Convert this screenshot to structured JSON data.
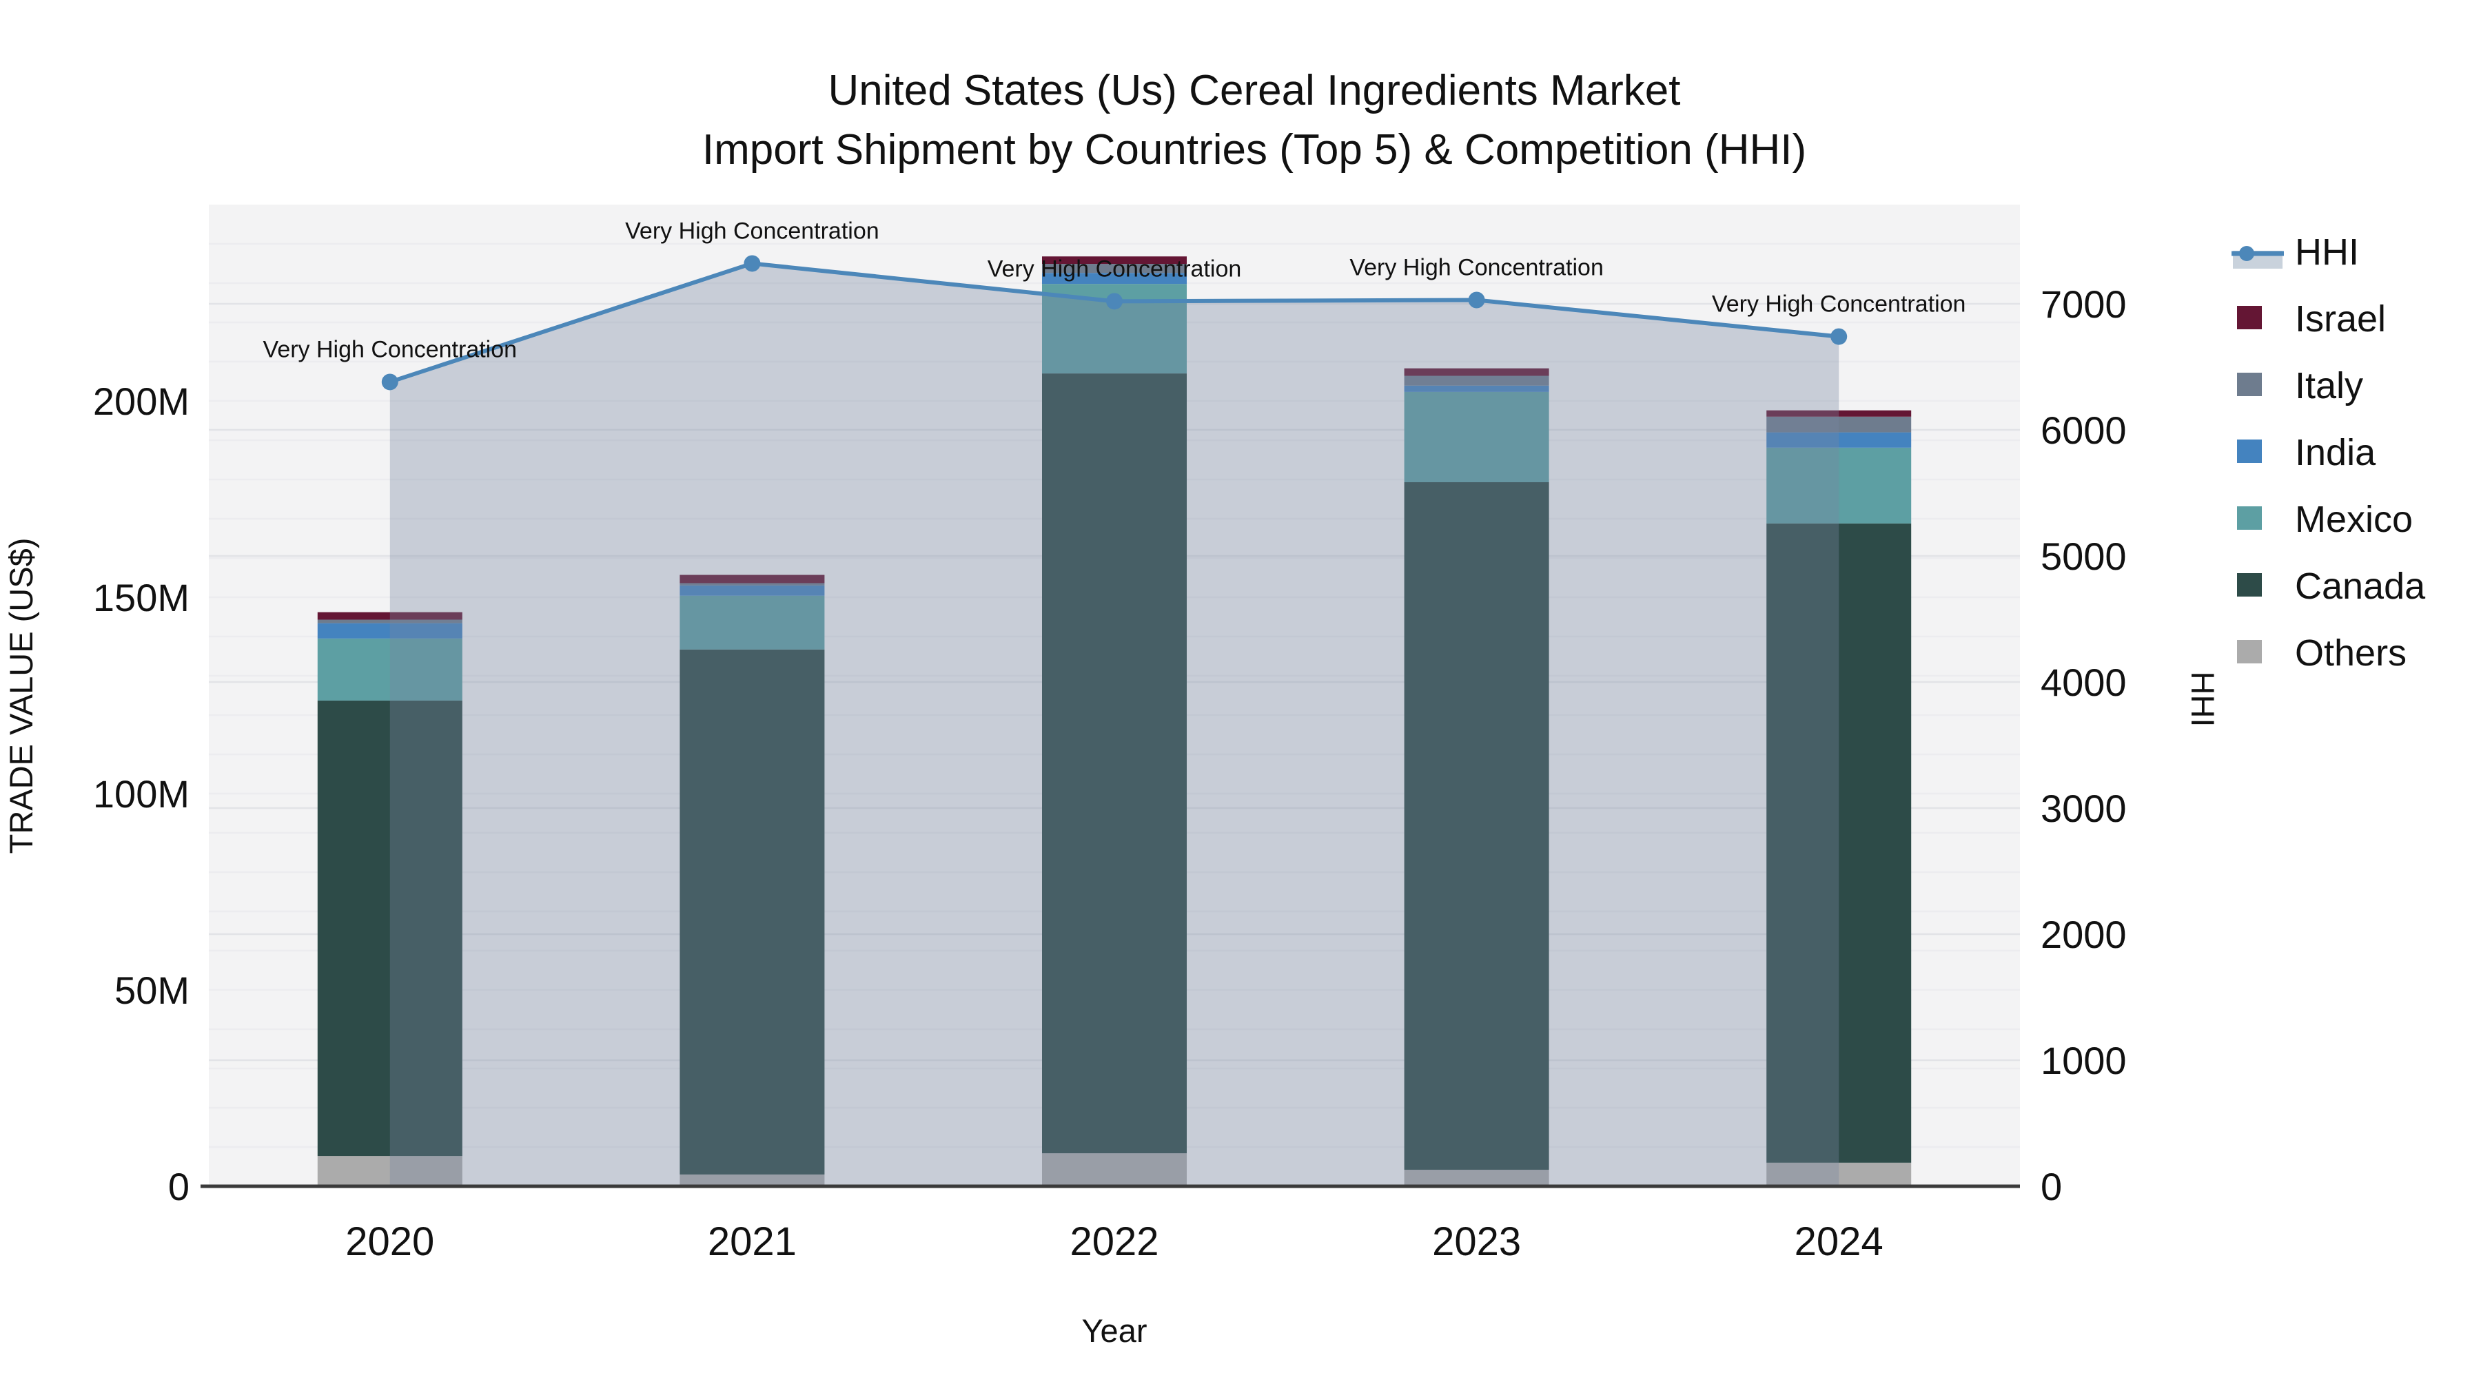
{
  "title": {
    "line1": "United States (Us) Cereal Ingredients Market",
    "line2": "Import Shipment by Countries (Top 5) & Competition (HHI)"
  },
  "axes": {
    "y_left": {
      "title": "TRADE VALUE (US$)",
      "ticks": [
        "0",
        "50M",
        "100M",
        "150M",
        "200M"
      ],
      "tick_step_millions": 50,
      "max_millions": 250
    },
    "y_right": {
      "title": "HHI",
      "ticks": [
        "0",
        "1000",
        "2000",
        "3000",
        "4000",
        "5000",
        "6000",
        "7000"
      ],
      "tick_step": 1000,
      "max": 7790
    },
    "x": {
      "title": "Year",
      "ticks": [
        "2020",
        "2021",
        "2022",
        "2023",
        "2024"
      ]
    }
  },
  "legend": {
    "items": [
      {
        "label": "HHI",
        "type": "line",
        "color": "#4C87B9",
        "band_color": "#C9D2DC"
      },
      {
        "label": "Israel",
        "type": "swatch",
        "color": "#641634"
      },
      {
        "label": "Italy",
        "type": "swatch",
        "color": "#6E7C8E"
      },
      {
        "label": "India",
        "type": "swatch",
        "color": "#4483BF"
      },
      {
        "label": "Mexico",
        "type": "swatch",
        "color": "#5D9FA3"
      },
      {
        "label": "Canada",
        "type": "swatch",
        "color": "#2D4B48"
      },
      {
        "label": "Others",
        "type": "swatch",
        "color": "#ABABAB"
      }
    ]
  },
  "chart_data": {
    "type": "combo_stacked_bar_line",
    "categories": [
      "2020",
      "2021",
      "2022",
      "2023",
      "2024"
    ],
    "bar_unit": "millions US$",
    "bar_series_bottom_to_top": [
      {
        "name": "Others",
        "color": "#ABABAB",
        "values": [
          7.7,
          3.0,
          8.4,
          4.2,
          6.0
        ]
      },
      {
        "name": "Canada",
        "color": "#2D4B48",
        "values": [
          116.0,
          133.7,
          198.6,
          175.1,
          162.8
        ]
      },
      {
        "name": "Mexico",
        "color": "#5D9FA3",
        "values": [
          15.8,
          13.7,
          22.8,
          23.0,
          19.3
        ]
      },
      {
        "name": "India",
        "color": "#4483BF",
        "values": [
          3.9,
          2.6,
          2.8,
          1.6,
          3.9
        ]
      },
      {
        "name": "Italy",
        "color": "#6E7C8E",
        "values": [
          0.9,
          0.6,
          2.3,
          2.5,
          4.0
        ]
      },
      {
        "name": "Israel",
        "color": "#641634",
        "values": [
          1.9,
          2.1,
          1.9,
          1.9,
          1.6
        ]
      }
    ],
    "bar_totals_millions": [
      146.2,
      155.7,
      236.8,
      208.3,
      197.6
    ],
    "line_series": {
      "name": "HHI",
      "color": "#4C87B9",
      "fill_rgba": "rgba(121,136,161,0.35)",
      "values": [
        6380,
        7320,
        7020,
        7030,
        6740
      ]
    },
    "annotations": [
      "Very High Concentration",
      "Very High Concentration",
      "Very High Concentration",
      "Very High Concentration",
      "Very High Concentration"
    ],
    "ylabel_left": "TRADE VALUE (US$)",
    "ylabel_right": "HHI",
    "xlabel": "Year",
    "ylim_left_millions": [
      0,
      250
    ],
    "ylim_right": [
      0,
      7790
    ],
    "grid": "faint horizontal: every 10M (left) and every 1000 (right)",
    "legend_position": "right"
  }
}
